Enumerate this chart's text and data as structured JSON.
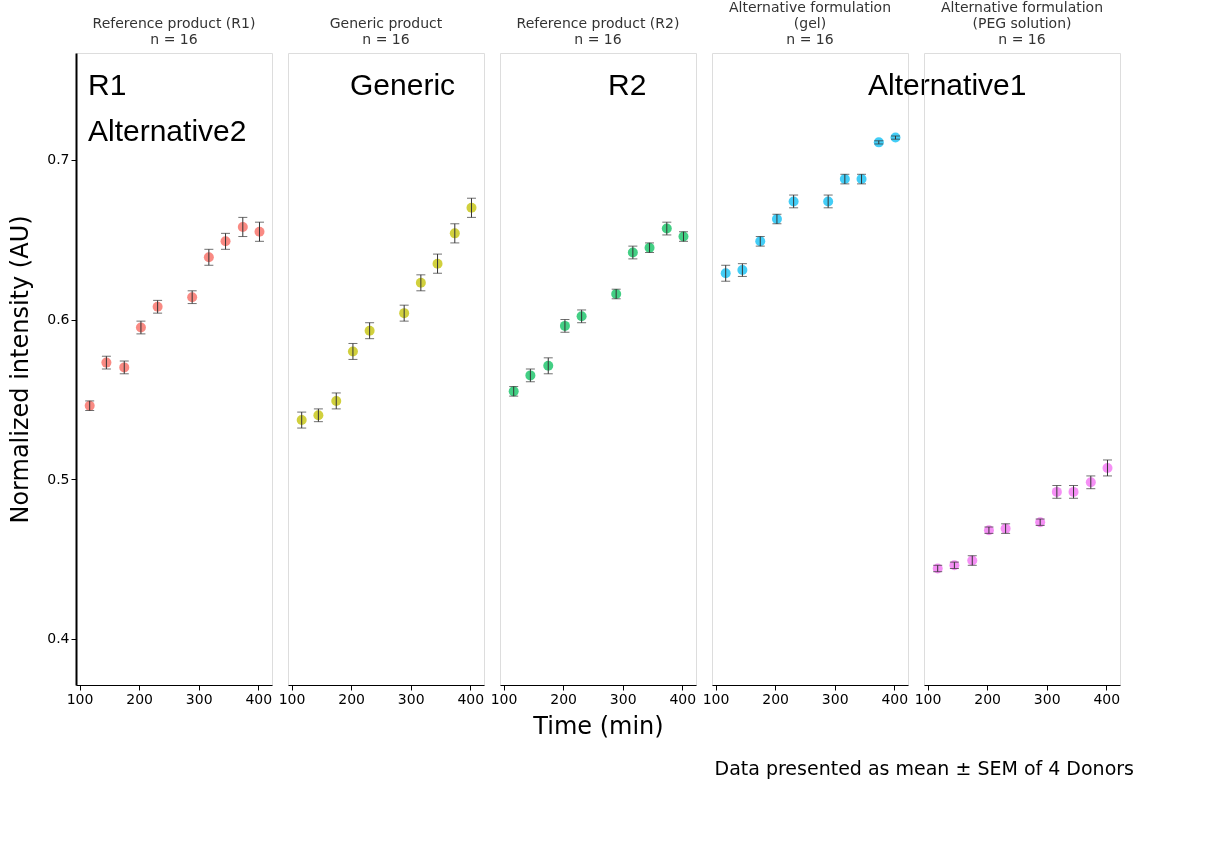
{
  "chart_data": [
    {
      "type": "scatter",
      "title": "Reference product (R1)",
      "subtitle": "n = 16",
      "ylabel": "Normalized intensity (AU)",
      "annotations": [
        "R1",
        "Alternative2"
      ],
      "marker": "circle",
      "grid": false,
      "xlim": [
        94,
        423
      ],
      "xticks": [
        100,
        200,
        300,
        400
      ],
      "ylim": [
        0.371,
        0.767
      ],
      "yticks": [
        0.4,
        0.5,
        0.6,
        0.7
      ],
      "x": [
        117,
        145,
        175,
        203,
        231,
        289,
        317,
        345,
        374,
        402
      ],
      "series": [
        {
          "color": "#f8766d",
          "values": [
            0.546,
            0.573,
            0.57,
            0.595,
            0.608,
            0.614,
            0.639,
            0.649,
            0.658,
            0.655
          ],
          "errors": [
            0.003,
            0.004,
            0.004,
            0.004,
            0.004,
            0.004,
            0.005,
            0.005,
            0.006,
            0.006
          ]
        }
      ]
    },
    {
      "type": "scatter",
      "title": "Generic product",
      "subtitle": "n = 16",
      "annotations": [
        "Generic"
      ],
      "marker": "circle",
      "grid": false,
      "tick_labels": "x",
      "xlim": [
        94,
        423
      ],
      "xticks": [
        100,
        200,
        300,
        400
      ],
      "ylim": [
        0.371,
        0.767
      ],
      "yticks": [
        0.4,
        0.5,
        0.6,
        0.7
      ],
      "x": [
        117,
        145,
        175,
        203,
        231,
        289,
        317,
        345,
        374,
        402
      ],
      "series": [
        {
          "color": "#c9c81b",
          "values": [
            0.537,
            0.54,
            0.549,
            0.58,
            0.593,
            0.604,
            0.623,
            0.635,
            0.654,
            0.67
          ],
          "errors": [
            0.005,
            0.004,
            0.005,
            0.005,
            0.005,
            0.005,
            0.005,
            0.006,
            0.006,
            0.006
          ]
        }
      ]
    },
    {
      "type": "scatter",
      "title": "Reference product (R2)",
      "subtitle": "n = 16",
      "xlabel": "Time (min)",
      "annotations": [
        "R2"
      ],
      "marker": "circle",
      "grid": false,
      "tick_labels": "x",
      "xlim": [
        94,
        423
      ],
      "xticks": [
        100,
        200,
        300,
        400
      ],
      "ylim": [
        0.371,
        0.767
      ],
      "yticks": [
        0.4,
        0.5,
        0.6,
        0.7
      ],
      "x": [
        117,
        145,
        175,
        203,
        231,
        289,
        317,
        345,
        374,
        402
      ],
      "series": [
        {
          "color": "#22c76f",
          "values": [
            0.555,
            0.565,
            0.571,
            0.596,
            0.602,
            0.616,
            0.642,
            0.645,
            0.657,
            0.652
          ],
          "errors": [
            0.003,
            0.004,
            0.005,
            0.004,
            0.004,
            0.003,
            0.004,
            0.003,
            0.004,
            0.003
          ]
        }
      ]
    },
    {
      "type": "scatter",
      "title": "Alternative formulation (gel)",
      "subtitle": "n = 16",
      "annotations": [
        "Alternative1"
      ],
      "marker": "circle",
      "grid": false,
      "tick_labels": "x",
      "xlim": [
        94,
        423
      ],
      "xticks": [
        100,
        200,
        300,
        400
      ],
      "ylim": [
        0.371,
        0.767
      ],
      "yticks": [
        0.4,
        0.5,
        0.6,
        0.7
      ],
      "x": [
        117,
        145,
        175,
        203,
        231,
        289,
        317,
        345,
        374,
        402
      ],
      "series": [
        {
          "color": "#22c4f4",
          "values": [
            0.629,
            0.631,
            0.649,
            0.663,
            0.674,
            0.674,
            0.688,
            0.688,
            0.711,
            0.714
          ],
          "errors": [
            0.005,
            0.004,
            0.003,
            0.003,
            0.004,
            0.004,
            0.003,
            0.003,
            0.001,
            0.001
          ]
        }
      ]
    },
    {
      "type": "scatter",
      "title": "Alternative formulation (PEG solution)",
      "subtitle": "n = 16",
      "annotations": [
        "Data presented as mean ± SEM of 4 Donors"
      ],
      "marker": "circle",
      "grid": false,
      "tick_labels": "x",
      "xlim": [
        94,
        423
      ],
      "xticks": [
        100,
        200,
        300,
        400
      ],
      "ylim": [
        0.371,
        0.767
      ],
      "yticks": [
        0.4,
        0.5,
        0.6,
        0.7
      ],
      "x": [
        117,
        145,
        175,
        203,
        231,
        289,
        317,
        345,
        374,
        402
      ],
      "series": [
        {
          "color": "#f37df3",
          "values": [
            0.444,
            0.446,
            0.449,
            0.468,
            0.469,
            0.473,
            0.492,
            0.492,
            0.498,
            0.507
          ],
          "errors": [
            0.002,
            0.002,
            0.003,
            0.002,
            0.003,
            0.002,
            0.004,
            0.004,
            0.004,
            0.005
          ]
        }
      ]
    }
  ]
}
